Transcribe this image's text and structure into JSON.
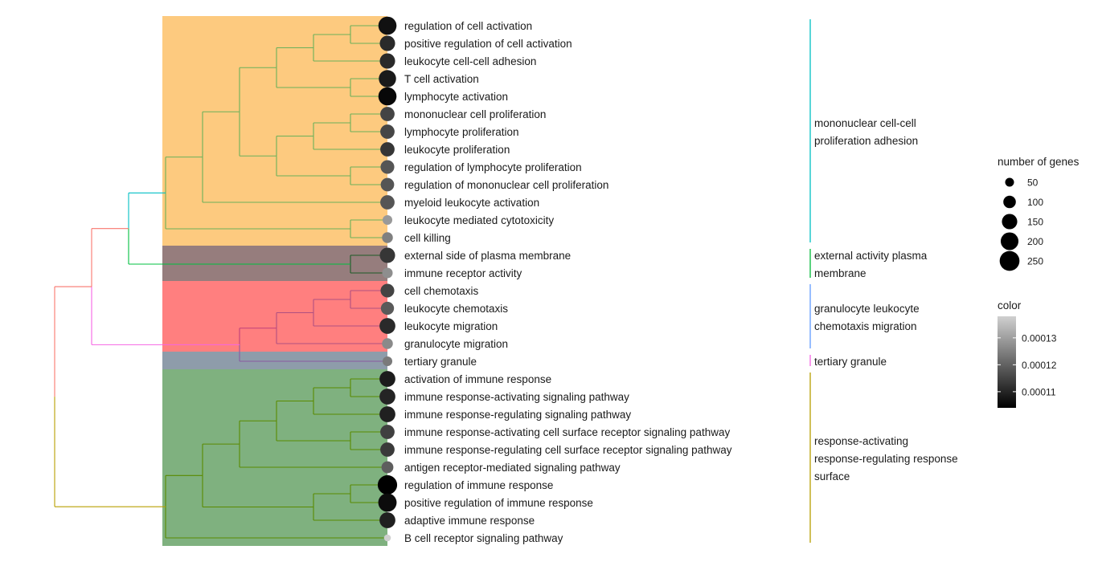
{
  "chart_data": {
    "type": "treeplot",
    "leaves": [
      {
        "label": "regulation of cell activation",
        "count": 210,
        "color": 0.0001068
      },
      {
        "label": "positive regulation of cell activation",
        "count": 150,
        "color": 0.0001109
      },
      {
        "label": "leukocyte cell-cell adhesion",
        "count": 150,
        "color": 0.0001109
      },
      {
        "label": "T cell activation",
        "count": 190,
        "color": 0.0001083
      },
      {
        "label": "lymphocyte activation",
        "count": 210,
        "color": 0.0001053
      },
      {
        "label": "mononuclear cell proliferation",
        "count": 130,
        "color": 0.0001151
      },
      {
        "label": "lymphocyte proliferation",
        "count": 130,
        "color": 0.0001154
      },
      {
        "label": "leukocyte proliferation",
        "count": 130,
        "color": 0.0001128
      },
      {
        "label": "regulation of lymphocyte proliferation",
        "count": 120,
        "color": 0.0001179
      },
      {
        "label": "regulation of mononuclear cell proliferation",
        "count": 115,
        "color": 0.0001179
      },
      {
        "label": "myeloid leukocyte activation",
        "count": 130,
        "color": 0.0001179
      },
      {
        "label": "leukocyte mediated cytotoxicity",
        "count": 60,
        "color": 0.000129
      },
      {
        "label": "cell killing",
        "count": 75,
        "color": 0.0001249
      },
      {
        "label": "external side of plasma membrane",
        "count": 150,
        "color": 0.0001128
      },
      {
        "label": "immune receptor activity",
        "count": 70,
        "color": 0.0001272
      },
      {
        "label": "cell chemotaxis",
        "count": 120,
        "color": 0.0001151
      },
      {
        "label": "leukocyte chemotaxis",
        "count": 110,
        "color": 0.0001187
      },
      {
        "label": "leukocyte migration",
        "count": 160,
        "color": 0.0001109
      },
      {
        "label": "granulocyte migration",
        "count": 75,
        "color": 0.0001266
      },
      {
        "label": "tertiary granule",
        "count": 60,
        "color": 0.0001239
      },
      {
        "label": "activation of immune response",
        "count": 160,
        "color": 0.0001086
      },
      {
        "label": "immune response-activating signaling pathway",
        "count": 160,
        "color": 0.0001099
      },
      {
        "label": "immune response-regulating signaling pathway",
        "count": 160,
        "color": 0.0001092
      },
      {
        "label": "immune response-activating cell surface receptor signaling pathway",
        "count": 130,
        "color": 0.0001145
      },
      {
        "label": "immune response-regulating cell surface receptor signaling pathway",
        "count": 130,
        "color": 0.0001135
      },
      {
        "label": "antigen receptor-mediated signaling pathway",
        "count": 90,
        "color": 0.0001194
      },
      {
        "label": "regulation of immune response",
        "count": 240,
        "color": 0.000104
      },
      {
        "label": "positive regulation of immune response",
        "count": 215,
        "color": 0.000106
      },
      {
        "label": "adaptive immune response",
        "count": 160,
        "color": 0.0001092
      },
      {
        "label": "B cell receptor signaling pathway",
        "count": 30,
        "color": 0.000138
      }
    ],
    "tree": {
      "h": 9,
      "colors": [
        "#f8766d",
        "#b79f00"
      ],
      "children": [
        {
          "h": 8,
          "colors": [
            "#f8766d",
            "#f564e3"
          ],
          "children": [
            {
              "h": 7,
              "colors": [
                "#00bfc4",
                "#00c040"
              ],
              "children": [
                {
                  "h": 6,
                  "c": "#6ab05a",
                  "children": [
                    {
                      "h": 5,
                      "c": "#6ab05a",
                      "children": [
                        {
                          "h": 4,
                          "c": "#6ab05a",
                          "children": [
                            {
                              "h": 3,
                              "c": "#6ab05a",
                              "children": [
                                {
                                  "h": 2,
                                  "c": "#6ab05a",
                                  "children": [
                                    {
                                      "h": 1,
                                      "c": "#6ab05a",
                                      "children": [
                                        0,
                                        1
                                      ]
                                    },
                                    2
                                  ]
                                },
                                {
                                  "h": 1,
                                  "c": "#6ab05a",
                                  "children": [
                                    3,
                                    4
                                  ]
                                }
                              ]
                            },
                            {
                              "h": 3,
                              "c": "#6ab05a",
                              "children": [
                                {
                                  "h": 2,
                                  "c": "#6ab05a",
                                  "children": [
                                    {
                                      "h": 1,
                                      "c": "#6ab05a",
                                      "children": [
                                        5,
                                        6
                                      ]
                                    },
                                    7
                                  ]
                                },
                                {
                                  "h": 1,
                                  "c": "#6ab05a",
                                  "children": [
                                    8,
                                    9
                                  ]
                                }
                              ]
                            }
                          ]
                        },
                        10
                      ]
                    },
                    {
                      "h": 1,
                      "c": "#6ab05a",
                      "children": [
                        11,
                        12
                      ]
                    }
                  ]
                },
                {
                  "h": 1,
                  "c": "#1e5a28",
                  "children": [
                    13,
                    14
                  ]
                }
              ]
            },
            {
              "h": 4,
              "colors": [
                "#c0407a",
                "#8a5aa0"
              ],
              "children": [
                {
                  "h": 3,
                  "c": "#b05080",
                  "children": [
                    {
                      "h": 2,
                      "c": "#b05080",
                      "children": [
                        {
                          "h": 1,
                          "c": "#b05080",
                          "children": [
                            15,
                            16
                          ]
                        },
                        17
                      ]
                    },
                    18
                  ]
                },
                19
              ]
            }
          ]
        },
        {
          "h": 6,
          "c": "#5a8a00",
          "children": [
            {
              "h": 5,
              "c": "#5a8a00",
              "children": [
                {
                  "h": 4,
                  "c": "#5a8a00",
                  "children": [
                    {
                      "h": 3,
                      "c": "#5a8a00",
                      "children": [
                        {
                          "h": 2,
                          "c": "#5a8a00",
                          "children": [
                            {
                              "h": 1,
                              "c": "#5a8a00",
                              "children": [
                                20,
                                21
                              ]
                            },
                            22
                          ]
                        },
                        {
                          "h": 1,
                          "c": "#5a8a00",
                          "children": [
                            23,
                            24
                          ]
                        }
                      ]
                    },
                    25
                  ]
                },
                {
                  "h": 2,
                  "c": "#5a8a00",
                  "children": [
                    {
                      "h": 1,
                      "c": "#5a8a00",
                      "children": [
                        26,
                        27
                      ]
                    },
                    28
                  ]
                }
              ]
            },
            29
          ]
        }
      ]
    },
    "clusters": [
      {
        "label": [
          "mononuclear cell-cell",
          "proliferation adhesion"
        ],
        "from": 0,
        "to": 12,
        "bg": "#fdca7f",
        "line": "#00bfc4"
      },
      {
        "label": [
          "external activity plasma",
          "membrane"
        ],
        "from": 13,
        "to": 14,
        "bg": "#967d7d",
        "line": "#00ba38"
      },
      {
        "label": [
          "granulocyte leukocyte",
          "chemotaxis migration"
        ],
        "from": 15,
        "to": 18,
        "bg": "#ff7f7f",
        "line": "#619cff"
      },
      {
        "label": [
          "tertiary granule"
        ],
        "from": 19,
        "to": 19,
        "bg": "#8e9caa",
        "line": "#f564e3"
      },
      {
        "label": [
          "response-activating",
          "response-regulating response",
          "surface"
        ],
        "from": 20,
        "to": 29,
        "bg": "#7fb17f",
        "line": "#b79f00"
      }
    ],
    "size_legend": {
      "title": "number of genes",
      "breaks": [
        "50",
        "100",
        "150",
        "200",
        "250"
      ]
    },
    "color_legend": {
      "title": "color",
      "breaks": [
        "0.00013",
        "0.00012",
        "0.00011"
      ],
      "range": [
        0.000104,
        0.000138
      ],
      "low": "#000000",
      "high": "#d0d0d0"
    }
  }
}
